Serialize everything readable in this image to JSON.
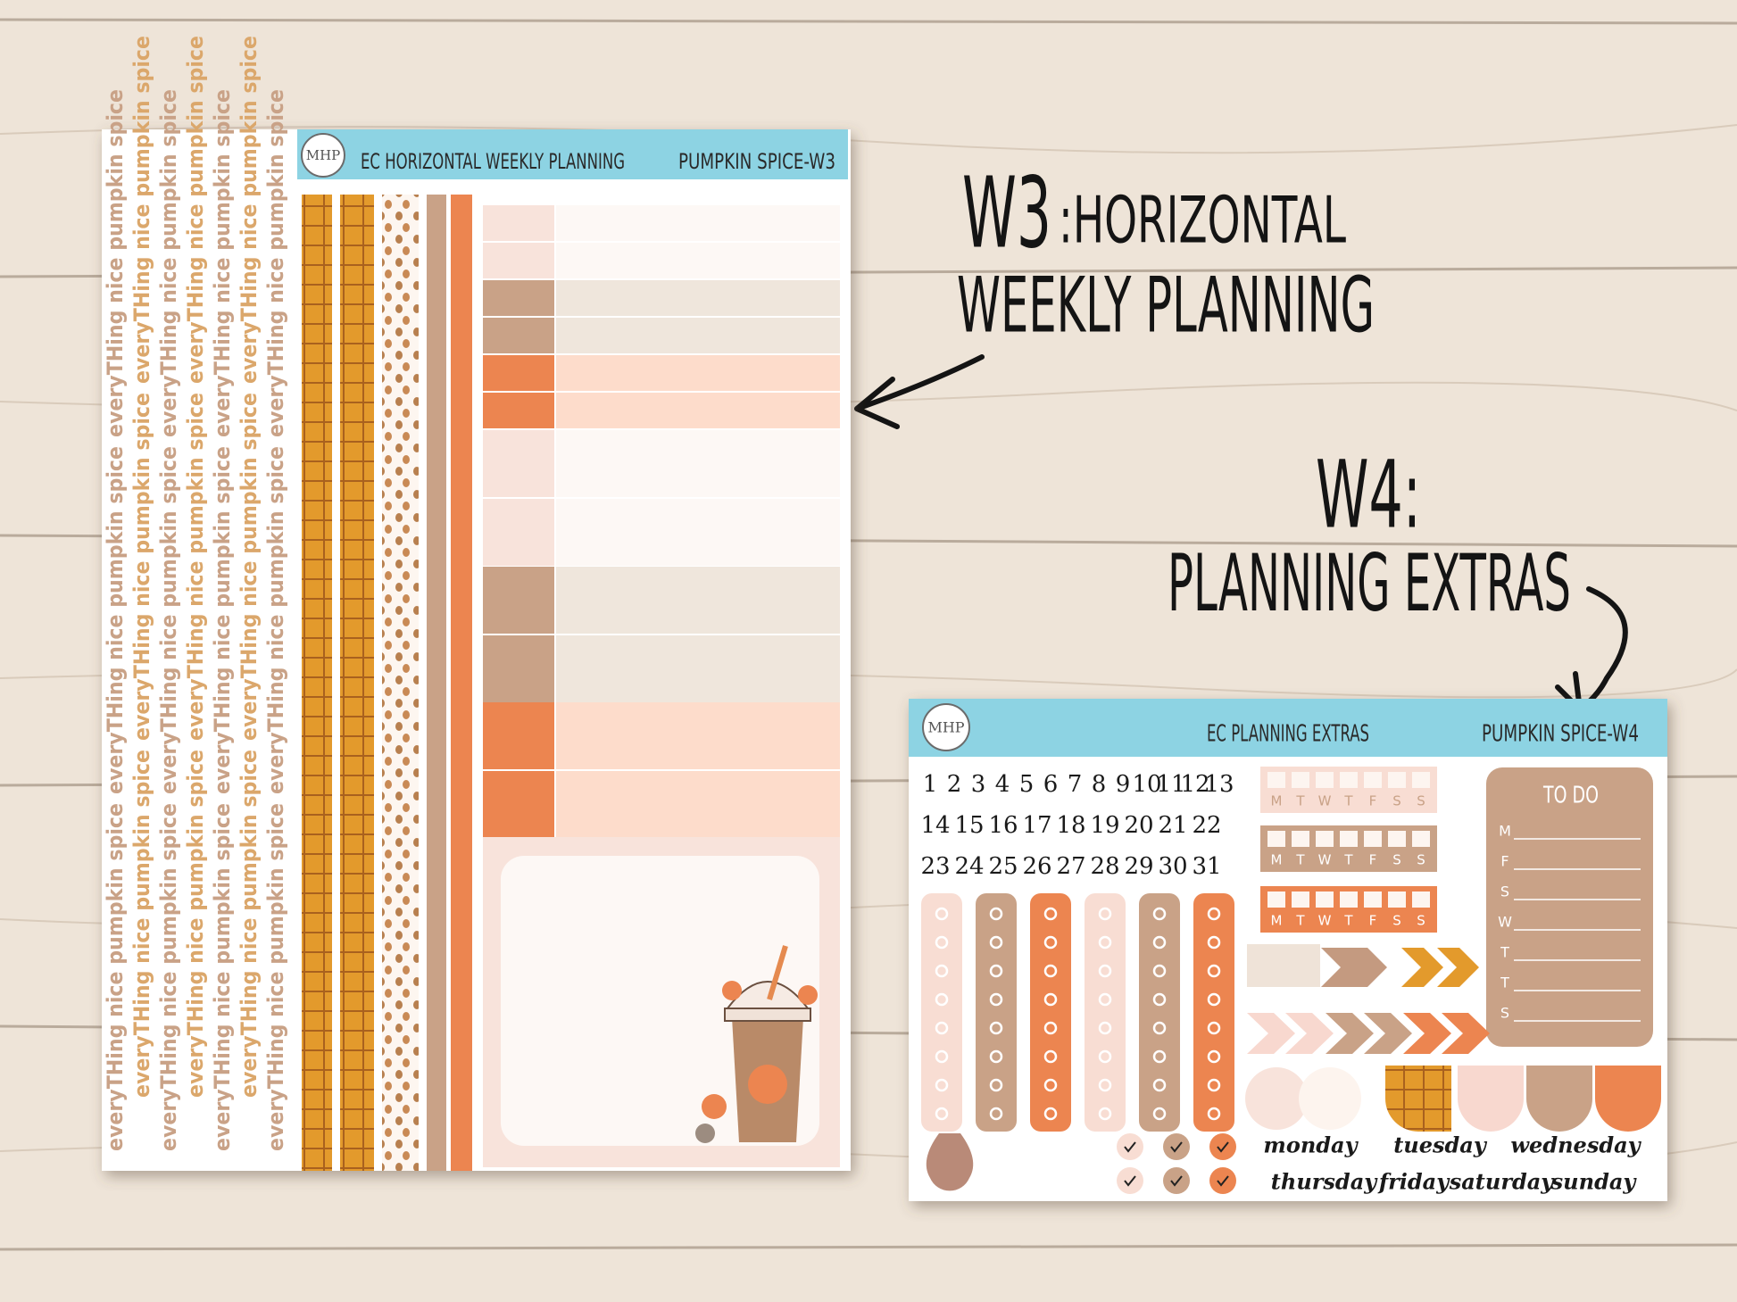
{
  "annotations": {
    "w3_label": "W3",
    "w3_title": ":HORIZONTAL",
    "w3_subtitle": "WEEKLY PLANNING",
    "w4_label": "W4:",
    "w4_subtitle": "PLANNING EXTRAS"
  },
  "sheet_w3": {
    "logo": "MHP",
    "title": "EC HORIZONTAL WEEKLY PLANNING",
    "code": "PUMPKIN SPICE-W3",
    "washi_text": "everyTHing nice pumpkin spice"
  },
  "sheet_w4": {
    "logo": "MHP",
    "title": "EC PLANNING EXTRAS",
    "code": "PUMPKIN SPICE-W4",
    "dates": [
      "1",
      "2",
      "3",
      "4",
      "5",
      "6",
      "7",
      "8",
      "9",
      "10",
      "11",
      "12",
      "13",
      "14",
      "15",
      "16",
      "17",
      "18",
      "19",
      "20",
      "21",
      "22",
      "23",
      "24",
      "25",
      "26",
      "27",
      "28",
      "29",
      "30",
      "31"
    ],
    "weekdays": [
      "M",
      "T",
      "W",
      "T",
      "F",
      "S",
      "S"
    ],
    "todo_title": "TO DO",
    "todo_days": [
      "M",
      "F",
      "S",
      "W",
      "T",
      "T",
      "S"
    ],
    "day_names": [
      "monday",
      "tuesday",
      "wednesday",
      "thursday",
      "friday",
      "saturday",
      "sunday"
    ]
  }
}
